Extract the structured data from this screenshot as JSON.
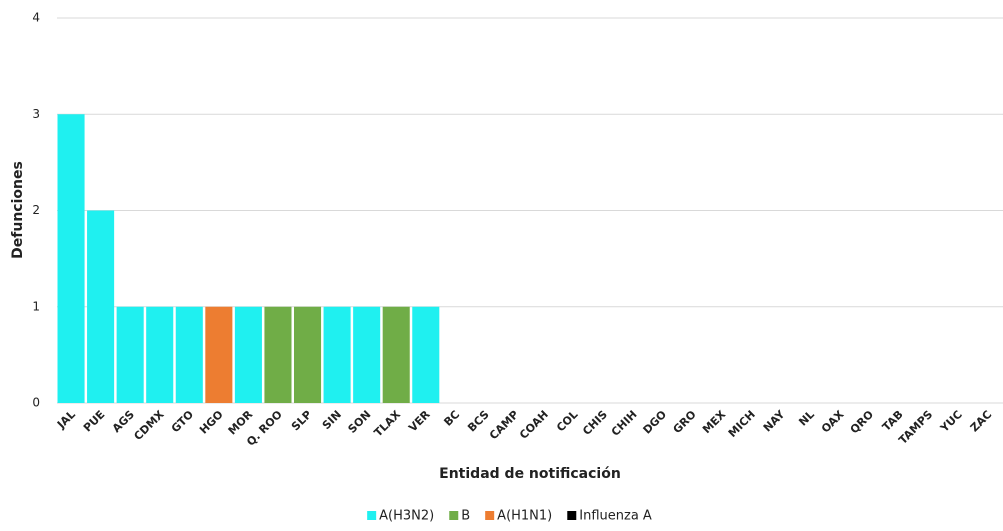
{
  "chart_data": {
    "type": "bar",
    "stacked": true,
    "x_label": "Entidad de notificación",
    "y_label": "Defunciones",
    "categories": [
      "JAL",
      "PUE",
      "AGS",
      "CDMX",
      "GTO",
      "HGO",
      "MOR",
      "Q. ROO",
      "SLP",
      "SIN",
      "SON",
      "TLAX",
      "VER",
      "BC",
      "BCS",
      "CAMP",
      "COAH",
      "COL",
      "CHIS",
      "CHIH",
      "DGO",
      "GRO",
      "MEX",
      "MICH",
      "NAY",
      "NL",
      "OAX",
      "QRO",
      "TAB",
      "TAMPS",
      "YUC",
      "ZAC"
    ],
    "series": [
      {
        "name": "A(H3N2)",
        "color": "#1ff0f0",
        "values": [
          3,
          2,
          1,
          1,
          1,
          0,
          1,
          0,
          0,
          1,
          1,
          0,
          1,
          0,
          0,
          0,
          0,
          0,
          0,
          0,
          0,
          0,
          0,
          0,
          0,
          0,
          0,
          0,
          0,
          0,
          0,
          0
        ]
      },
      {
        "name": "B",
        "color": "#70ad47",
        "values": [
          0,
          0,
          0,
          0,
          0,
          0,
          0,
          1,
          1,
          0,
          0,
          1,
          0,
          0,
          0,
          0,
          0,
          0,
          0,
          0,
          0,
          0,
          0,
          0,
          0,
          0,
          0,
          0,
          0,
          0,
          0,
          0
        ]
      },
      {
        "name": "A(H1N1)",
        "color": "#ed7d31",
        "values": [
          0,
          0,
          0,
          0,
          0,
          1,
          0,
          0,
          0,
          0,
          0,
          0,
          0,
          0,
          0,
          0,
          0,
          0,
          0,
          0,
          0,
          0,
          0,
          0,
          0,
          0,
          0,
          0,
          0,
          0,
          0,
          0
        ]
      },
      {
        "name": "Influenza A",
        "color": "#000000",
        "values": [
          0,
          0,
          0,
          0,
          0,
          0,
          0,
          0,
          0,
          0,
          0,
          0,
          0,
          0,
          0,
          0,
          0,
          0,
          0,
          0,
          0,
          0,
          0,
          0,
          0,
          0,
          0,
          0,
          0,
          0,
          0,
          0
        ]
      }
    ],
    "ylim": [
      0,
      4
    ],
    "yticks": [
      0,
      1,
      2,
      3,
      4
    ],
    "grid": true,
    "legend": "bottom"
  }
}
